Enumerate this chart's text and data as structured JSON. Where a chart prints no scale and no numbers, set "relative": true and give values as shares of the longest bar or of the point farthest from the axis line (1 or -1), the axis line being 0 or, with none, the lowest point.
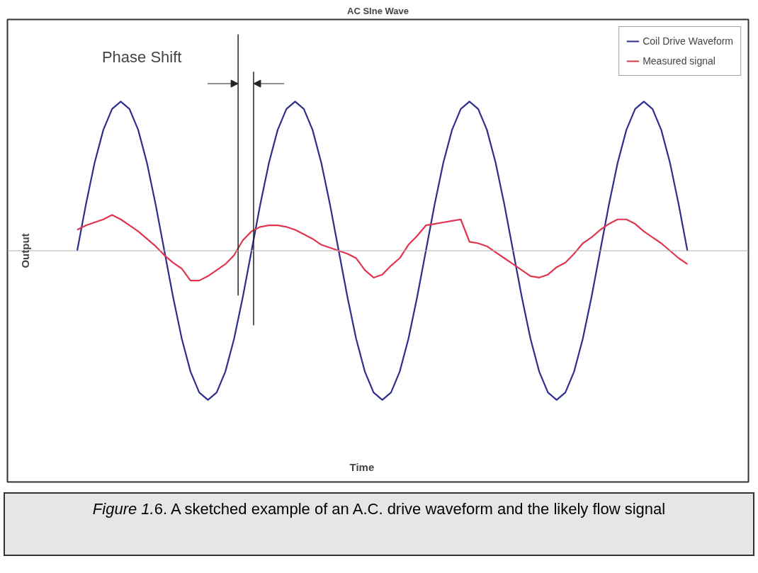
{
  "chart_data": {
    "type": "line",
    "title": "AC SIne Wave",
    "ylabel": "Output",
    "relative": true,
    "grid": false,
    "legend": "top right",
    "categories": [
      null,
      null,
      null,
      null,
      null,
      null,
      null,
      null,
      null,
      null,
      null,
      null,
      null,
      null,
      null,
      null,
      null,
      null,
      null,
      null,
      null,
      null,
      null,
      null,
      null,
      null,
      null,
      null,
      null,
      null,
      null,
      null,
      null,
      null,
      null,
      null,
      null,
      null,
      null,
      null,
      null,
      null,
      null,
      null,
      null,
      null,
      null,
      null,
      null,
      null,
      null,
      null,
      null,
      null,
      null,
      null,
      null,
      null,
      null,
      null,
      null,
      null,
      null,
      null,
      null,
      null,
      null,
      null,
      null,
      null,
      null
    ],
    "series": [
      {
        "name": "Coil Drive Waveform",
        "color": "#2e2e8c",
        "values": [
          0,
          0.31,
          0.59,
          0.81,
          0.95,
          1,
          0.95,
          0.81,
          0.59,
          0.31,
          0,
          -0.31,
          -0.59,
          -0.81,
          -0.95,
          -1,
          -0.95,
          -0.81,
          -0.59,
          -0.31,
          0,
          0.31,
          0.59,
          0.81,
          0.95,
          1,
          0.95,
          0.81,
          0.59,
          0.31,
          0,
          -0.31,
          -0.59,
          -0.81,
          -0.95,
          -1,
          -0.95,
          -0.81,
          -0.59,
          -0.31,
          0,
          0.31,
          0.59,
          0.81,
          0.95,
          1,
          0.95,
          0.81,
          0.59,
          0.31,
          0,
          -0.31,
          -0.59,
          -0.81,
          -0.95,
          -1,
          -0.95,
          -0.81,
          -0.59,
          -0.31,
          0,
          0.31,
          0.59,
          0.81,
          0.95,
          1,
          0.95,
          0.81,
          0.59,
          0.31,
          0
        ]
      },
      {
        "name": "Measured signal",
        "color": "#e0344f",
        "values": [
          0.14,
          0.17,
          0.19,
          0.21,
          0.24,
          0.21,
          0.17,
          0.13,
          0.08,
          0.03,
          -0.03,
          -0.08,
          -0.12,
          -0.2,
          -0.2,
          -0.17,
          -0.13,
          -0.09,
          -0.03,
          0.07,
          0.13,
          0.16,
          0.17,
          0.17,
          0.16,
          0.14,
          0.11,
          0.08,
          0.04,
          0.02,
          0,
          -0.02,
          -0.05,
          -0.13,
          -0.18,
          -0.16,
          -0.1,
          -0.05,
          0.04,
          0.1,
          0.17,
          0.18,
          0.19,
          0.2,
          0.21,
          0.06,
          0.05,
          0.03,
          -0.01,
          -0.05,
          -0.09,
          -0.13,
          -0.17,
          -0.18,
          -0.16,
          -0.11,
          -0.08,
          -0.02,
          0.05,
          0.09,
          0.14,
          0.18,
          0.21,
          0.21,
          0.18,
          0.13,
          0.09,
          0.05,
          0,
          -0.05,
          -0.09
        ]
      }
    ],
    "annotations": [
      "Phase Shift",
      "Time",
      "Figure 1.6. A sketched example of an A.C. drive waveform and the likely flow signal"
    ]
  }
}
